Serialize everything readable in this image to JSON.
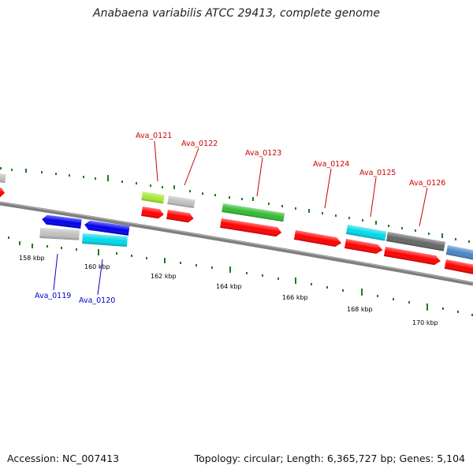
{
  "title": "Anabaena variabilis ATCC 29413, complete genome",
  "footer": {
    "accession": "Accession: NC_007413",
    "summary": "Topology: circular; Length: 6,365,727 bp; Genes: 5,104"
  },
  "colors": {
    "backbone": "#808080",
    "tick": "#1f7a1f",
    "forward_label": "#cc0000",
    "reverse_label": "#0000cc",
    "cds": "#ff0000",
    "grey": "#c0c0c0",
    "blue": "#0000ee",
    "cyan": "#00d8e8",
    "lime": "#a6e832",
    "green": "#33bb33",
    "dark": "#666666",
    "steel": "#4a86c8"
  },
  "scale_labels": [
    "158 kbp",
    "160 kbp",
    "162 kbp",
    "164 kbp",
    "166 kbp",
    "168 kbp",
    "170 kbp"
  ],
  "gene_labels_top": [
    "Ava_0121",
    "Ava_0122",
    "Ava_0123",
    "Ava_0124",
    "Ava_0125",
    "Ava_0126"
  ],
  "gene_labels_bottom": [
    "Ava_0119",
    "Ava_0120"
  ]
}
